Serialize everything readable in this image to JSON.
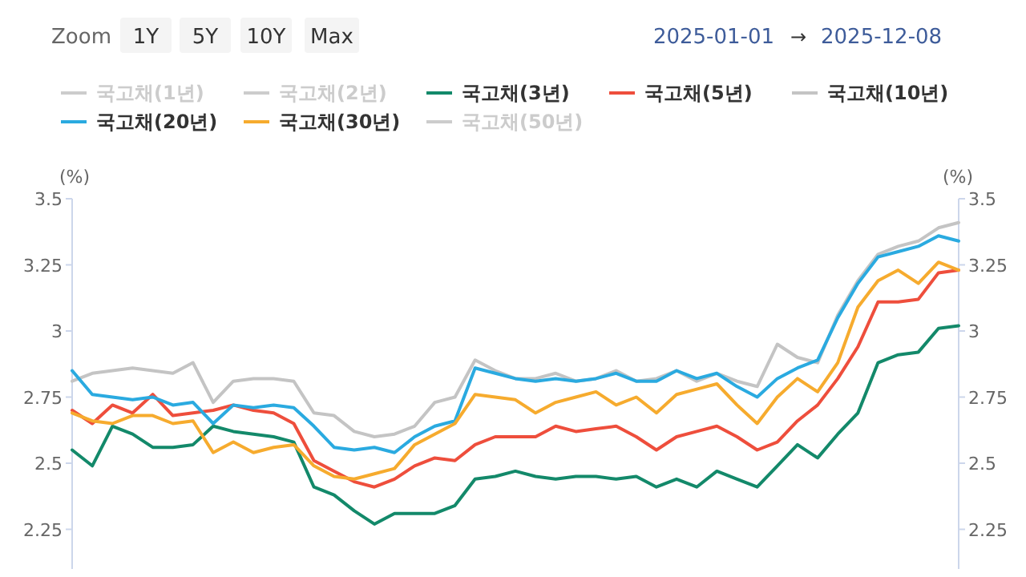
{
  "chart_data": {
    "type": "line",
    "ylabel": "(%)",
    "y2label": "(%)",
    "annotations": [
      "Zoom",
      "1Y",
      "5Y",
      "10Y",
      "Max",
      "2025-01-01",
      "→",
      "2025-12-08"
    ],
    "categories": [
      null,
      null,
      null,
      null,
      null,
      null,
      null,
      null,
      null,
      null,
      null,
      null,
      null,
      null,
      null,
      null,
      null,
      null,
      null,
      null,
      null,
      null,
      null,
      null,
      null,
      null,
      null,
      null,
      null,
      null,
      null,
      null,
      null,
      null,
      null,
      null,
      null,
      null,
      null,
      null,
      null,
      null,
      null,
      null,
      null
    ],
    "ylim": [
      2.1,
      3.5
    ],
    "yticks": [
      2.25,
      2.5,
      2.75,
      3,
      3.25,
      3.5
    ],
    "y2lim": [
      2.1,
      3.5
    ],
    "y2ticks": [
      2.25,
      2.5,
      2.75,
      3,
      3.25,
      3.5
    ],
    "grid": false,
    "legend": "top",
    "marker": "none",
    "line_style": "solid",
    "series": [
      {
        "name": "국고채(1년)",
        "color": "#cccccc",
        "values": [
          null,
          null,
          null,
          null,
          null,
          null,
          null,
          null,
          null,
          null,
          null,
          null,
          null,
          null,
          null,
          null,
          null,
          null,
          null,
          null,
          null,
          null,
          null,
          null,
          null,
          null,
          null,
          null,
          null,
          null,
          null,
          null,
          null,
          null,
          null,
          null,
          null,
          null,
          null,
          null,
          null,
          null,
          null,
          null,
          null
        ]
      },
      {
        "name": "국고채(2년)",
        "color": "#cccccc",
        "values": [
          null,
          null,
          null,
          null,
          null,
          null,
          null,
          null,
          null,
          null,
          null,
          null,
          null,
          null,
          null,
          null,
          null,
          null,
          null,
          null,
          null,
          null,
          null,
          null,
          null,
          null,
          null,
          null,
          null,
          null,
          null,
          null,
          null,
          null,
          null,
          null,
          null,
          null,
          null,
          null,
          null,
          null,
          null,
          null,
          null
        ]
      },
      {
        "name": "국고채(3년)",
        "color": "#13896a",
        "values": [
          2.55,
          2.49,
          2.64,
          2.61,
          2.56,
          2.56,
          2.57,
          2.64,
          2.62,
          2.61,
          2.6,
          2.58,
          2.41,
          2.38,
          2.32,
          2.27,
          2.31,
          2.31,
          2.31,
          2.34,
          2.44,
          2.45,
          2.47,
          2.45,
          2.44,
          2.45,
          2.45,
          2.44,
          2.45,
          2.41,
          2.44,
          2.41,
          2.47,
          2.44,
          2.41,
          2.49,
          2.57,
          2.52,
          2.61,
          2.69,
          2.88,
          2.91,
          2.92,
          3.01,
          3.02
        ]
      },
      {
        "name": "국고채(5년)",
        "color": "#ee4e3c",
        "values": [
          2.7,
          2.65,
          2.72,
          2.69,
          2.76,
          2.68,
          2.69,
          2.7,
          2.72,
          2.7,
          2.69,
          2.65,
          2.51,
          2.47,
          2.43,
          2.41,
          2.44,
          2.49,
          2.52,
          2.51,
          2.57,
          2.6,
          2.6,
          2.6,
          2.64,
          2.62,
          2.63,
          2.64,
          2.6,
          2.55,
          2.6,
          2.62,
          2.64,
          2.6,
          2.55,
          2.58,
          2.66,
          2.72,
          2.82,
          2.94,
          3.11,
          3.11,
          3.12,
          3.22,
          3.23
        ]
      },
      {
        "name": "국고채(10년)",
        "color": "#c4c4c4",
        "values": [
          2.81,
          2.84,
          2.85,
          2.86,
          2.85,
          2.84,
          2.88,
          2.73,
          2.81,
          2.82,
          2.82,
          2.81,
          2.69,
          2.68,
          2.62,
          2.6,
          2.61,
          2.64,
          2.73,
          2.75,
          2.89,
          2.85,
          2.82,
          2.82,
          2.84,
          2.81,
          2.82,
          2.85,
          2.81,
          2.82,
          2.85,
          2.81,
          2.84,
          2.81,
          2.79,
          2.95,
          2.9,
          2.88,
          3.06,
          3.19,
          3.29,
          3.32,
          3.34,
          3.39,
          3.41
        ]
      },
      {
        "name": "국고채(20년)",
        "color": "#2aaae0",
        "values": [
          2.85,
          2.76,
          2.75,
          2.74,
          2.75,
          2.72,
          2.73,
          2.65,
          2.72,
          2.71,
          2.72,
          2.71,
          2.64,
          2.56,
          2.55,
          2.56,
          2.54,
          2.6,
          2.64,
          2.66,
          2.86,
          2.84,
          2.82,
          2.81,
          2.82,
          2.81,
          2.82,
          2.84,
          2.81,
          2.81,
          2.85,
          2.82,
          2.84,
          2.79,
          2.75,
          2.82,
          2.86,
          2.89,
          3.05,
          3.18,
          3.28,
          3.3,
          3.32,
          3.36,
          3.34
        ]
      },
      {
        "name": "국고채(30년)",
        "color": "#f6ab2e",
        "values": [
          2.69,
          2.66,
          2.65,
          2.68,
          2.68,
          2.65,
          2.66,
          2.54,
          2.58,
          2.54,
          2.56,
          2.57,
          2.49,
          2.45,
          2.44,
          2.46,
          2.48,
          2.57,
          2.61,
          2.65,
          2.76,
          2.75,
          2.74,
          2.69,
          2.73,
          2.75,
          2.77,
          2.72,
          2.75,
          2.69,
          2.76,
          2.78,
          2.8,
          2.72,
          2.65,
          2.75,
          2.82,
          2.77,
          2.88,
          3.09,
          3.19,
          3.23,
          3.18,
          3.26,
          3.23
        ]
      },
      {
        "name": "국고채(50년)",
        "color": "#cccccc",
        "values": [
          null,
          null,
          null,
          null,
          null,
          null,
          null,
          null,
          null,
          null,
          null,
          null,
          null,
          null,
          null,
          null,
          null,
          null,
          null,
          null,
          null,
          null,
          null,
          null,
          null,
          null,
          null,
          null,
          null,
          null,
          null,
          null,
          null,
          null,
          null,
          null,
          null,
          null,
          null,
          null,
          null,
          null,
          null,
          null,
          null
        ]
      }
    ]
  }
}
